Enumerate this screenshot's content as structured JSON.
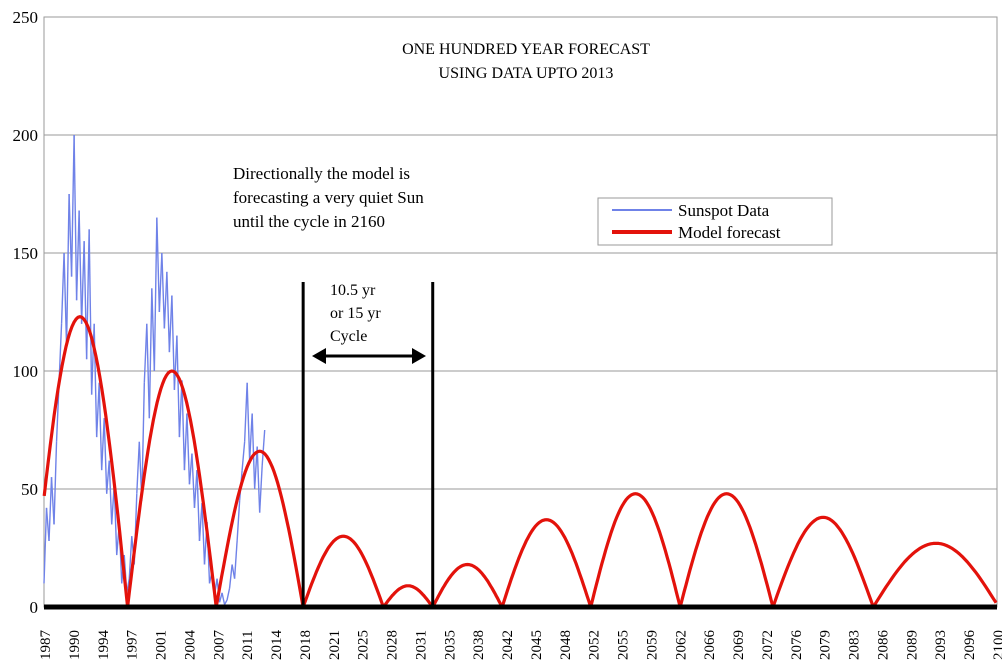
{
  "chart_data": {
    "type": "line",
    "title_lines": [
      "ONE HUNDRED YEAR FORECAST",
      "USING DATA UPTO 2013"
    ],
    "annotation_lines": [
      "Directionally the model is",
      "forecasting a very quiet Sun",
      "until the cycle in 2160"
    ],
    "cycle_label_lines": [
      "10.5 yr",
      "or 15 yr",
      "Cycle"
    ],
    "cycle_markers": [
      2018,
      2033.5
    ],
    "ylim": [
      0,
      250
    ],
    "xlim": [
      1987,
      2101
    ],
    "yticks": [
      0,
      50,
      100,
      150,
      200,
      250
    ],
    "xticks": [
      "1987",
      "1990",
      "1994",
      "1997",
      "2001",
      "2004",
      "2007",
      "2011",
      "2014",
      "2018",
      "2021",
      "2025",
      "2028",
      "2031",
      "2035",
      "2038",
      "2042",
      "2045",
      "2048",
      "2052",
      "2055",
      "2059",
      "2062",
      "2066",
      "2069",
      "2072",
      "2076",
      "2079",
      "2083",
      "2086",
      "2089",
      "2093",
      "2096",
      "2100"
    ],
    "grid": true,
    "legend_position": "upper-right",
    "series": [
      {
        "name": "Sunspot Data",
        "color": "#6f82e8",
        "x": [
          1987.0,
          1987.3,
          1987.6,
          1987.9,
          1988.2,
          1988.5,
          1988.8,
          1989.1,
          1989.4,
          1989.7,
          1990.0,
          1990.3,
          1990.6,
          1990.9,
          1991.2,
          1991.5,
          1991.8,
          1992.1,
          1992.4,
          1992.7,
          1993.0,
          1993.3,
          1993.6,
          1993.9,
          1994.2,
          1994.5,
          1994.8,
          1995.1,
          1995.4,
          1995.7,
          1996.0,
          1996.3,
          1996.6,
          1996.9,
          1997.2,
          1997.5,
          1997.8,
          1998.1,
          1998.4,
          1998.7,
          1999.0,
          1999.3,
          1999.6,
          1999.9,
          2000.2,
          2000.5,
          2000.8,
          2001.1,
          2001.4,
          2001.7,
          2002.0,
          2002.3,
          2002.6,
          2002.9,
          2003.2,
          2003.5,
          2003.8,
          2004.1,
          2004.4,
          2004.7,
          2005.0,
          2005.3,
          2005.6,
          2005.9,
          2006.2,
          2006.5,
          2006.8,
          2007.1,
          2007.4,
          2007.7,
          2008.0,
          2008.3,
          2008.6,
          2008.9,
          2009.2,
          2009.5,
          2009.8,
          2010.1,
          2010.4,
          2010.7,
          2011.0,
          2011.3,
          2011.6,
          2011.9,
          2012.2,
          2012.5,
          2012.8,
          2013.1,
          2013.4
        ],
        "y": [
          10,
          42,
          28,
          55,
          35,
          70,
          95,
          120,
          150,
          110,
          175,
          140,
          200,
          130,
          168,
          120,
          155,
          105,
          160,
          90,
          120,
          72,
          95,
          58,
          80,
          48,
          62,
          35,
          52,
          22,
          35,
          10,
          22,
          6,
          12,
          30,
          18,
          48,
          70,
          45,
          95,
          120,
          80,
          135,
          100,
          165,
          125,
          150,
          118,
          142,
          108,
          132,
          92,
          115,
          72,
          96,
          58,
          82,
          52,
          65,
          42,
          58,
          28,
          44,
          18,
          36,
          10,
          15,
          5,
          12,
          2,
          6,
          1,
          3,
          8,
          18,
          12,
          28,
          45,
          58,
          70,
          95,
          62,
          82,
          50,
          68,
          40,
          60,
          75
        ],
        "y_min": 0
      },
      {
        "name": "Model forecast",
        "color": "#e3120b",
        "arches": [
          {
            "start": 1985.6,
            "end": 1997.0,
            "peak": 123
          },
          {
            "start": 1997.0,
            "end": 2007.6,
            "peak": 100
          },
          {
            "start": 2007.6,
            "end": 2018.0,
            "peak": 66
          },
          {
            "start": 2018.0,
            "end": 2027.6,
            "peak": 30
          },
          {
            "start": 2027.6,
            "end": 2033.5,
            "peak": 9
          },
          {
            "start": 2033.5,
            "end": 2041.8,
            "peak": 18
          },
          {
            "start": 2041.8,
            "end": 2052.4,
            "peak": 37
          },
          {
            "start": 2052.4,
            "end": 2063.1,
            "peak": 48
          },
          {
            "start": 2063.1,
            "end": 2074.2,
            "peak": 48
          },
          {
            "start": 2074.2,
            "end": 2086.2,
            "peak": 38
          },
          {
            "start": 2086.2,
            "end": 2101.2,
            "peak": 27
          }
        ]
      }
    ]
  }
}
